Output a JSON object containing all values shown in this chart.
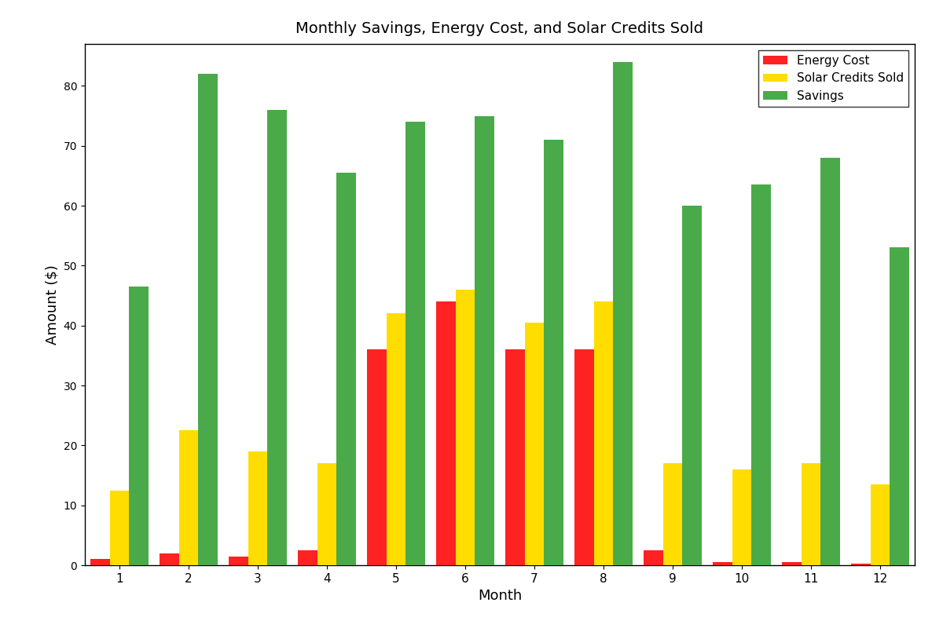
{
  "months": [
    1,
    2,
    3,
    4,
    5,
    6,
    7,
    8,
    9,
    10,
    11,
    12
  ],
  "energy_cost": [
    1.0,
    2.0,
    1.5,
    2.5,
    36.0,
    44.0,
    36.0,
    36.0,
    2.5,
    0.5,
    0.5,
    0.2
  ],
  "solar_credits": [
    12.5,
    22.5,
    19.0,
    17.0,
    42.0,
    46.0,
    40.5,
    44.0,
    17.0,
    16.0,
    17.0,
    13.5
  ],
  "savings": [
    46.5,
    82.0,
    76.0,
    65.5,
    74.0,
    75.0,
    71.0,
    84.0,
    60.0,
    63.5,
    68.0,
    53.0
  ],
  "energy_cost_color": "#ff2222",
  "solar_credits_color": "#ffdd00",
  "savings_color": "#4aaa4a",
  "title": "Monthly Savings, Energy Cost, and Solar Credits Sold",
  "xlabel": "Month",
  "ylabel": "Amount ($)",
  "ylim": [
    0,
    87
  ],
  "bar_width": 0.28,
  "legend_labels": [
    "Energy Cost",
    "Solar Credits Sold",
    "Savings"
  ],
  "background_color": "#ffffff"
}
